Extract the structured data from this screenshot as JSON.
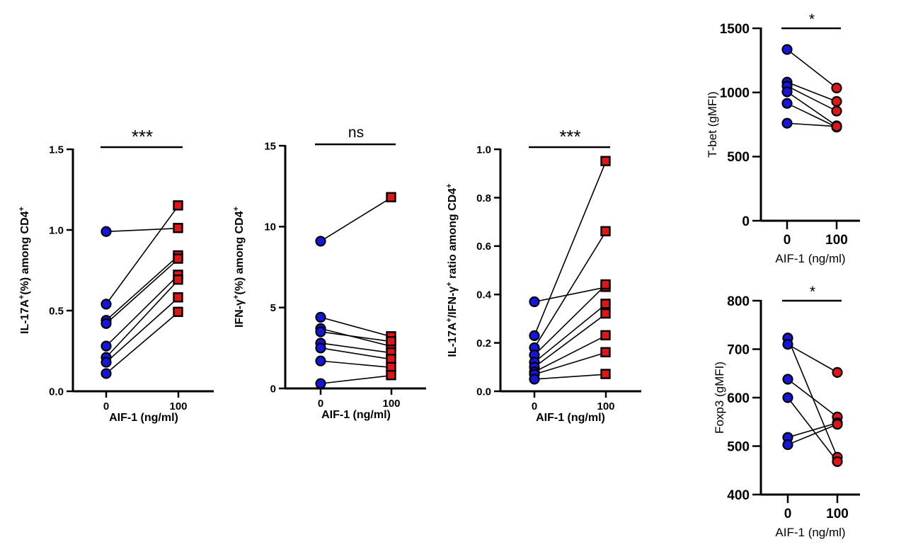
{
  "colors": {
    "ctrl": "#1515e0",
    "treated": "#e01515",
    "axis": "#000000"
  },
  "chart_data": [
    {
      "type": "scatter",
      "title": "",
      "xlabel": "AIF-1 (ng/ml)",
      "ylabel_parts": [
        "IL-17A",
        "+",
        "(%) among CD4",
        "+"
      ],
      "categories": [
        "0",
        "100"
      ],
      "ylim": [
        0,
        1.5
      ],
      "yticks": [
        0,
        0.5,
        1.0,
        1.5
      ],
      "ytick_labels": [
        "0.0",
        "0.5",
        "1.0",
        "1.5"
      ],
      "significance": "***",
      "marker_treated": "square",
      "series": [
        {
          "name": "pair-1",
          "values": [
            0.99,
            1.01
          ]
        },
        {
          "name": "pair-2",
          "values": [
            0.54,
            1.15
          ]
        },
        {
          "name": "pair-3",
          "values": [
            0.44,
            0.84
          ]
        },
        {
          "name": "pair-4",
          "values": [
            0.42,
            0.82
          ]
        },
        {
          "name": "pair-5",
          "values": [
            0.28,
            0.72
          ]
        },
        {
          "name": "pair-6",
          "values": [
            0.21,
            0.69
          ]
        },
        {
          "name": "pair-7",
          "values": [
            0.18,
            0.58
          ]
        },
        {
          "name": "pair-8",
          "values": [
            0.11,
            0.49
          ]
        }
      ]
    },
    {
      "type": "scatter",
      "title": "",
      "xlabel": "AIF-1 (ng/ml)",
      "ylabel_parts": [
        "IFN-γ",
        "+",
        "(%) among CD4",
        "+"
      ],
      "categories": [
        "0",
        "100"
      ],
      "ylim": [
        0,
        15
      ],
      "yticks": [
        0,
        5,
        10,
        15
      ],
      "ytick_labels": [
        "0",
        "5",
        "10",
        "15"
      ],
      "significance": "ns",
      "marker_treated": "square",
      "series": [
        {
          "name": "pair-1",
          "values": [
            9.1,
            11.8
          ]
        },
        {
          "name": "pair-2",
          "values": [
            4.4,
            3.2
          ]
        },
        {
          "name": "pair-3",
          "values": [
            3.7,
            2.6
          ]
        },
        {
          "name": "pair-4",
          "values": [
            3.5,
            2.9
          ]
        },
        {
          "name": "pair-5",
          "values": [
            2.8,
            2.2
          ]
        },
        {
          "name": "pair-6",
          "values": [
            2.5,
            1.8
          ]
        },
        {
          "name": "pair-7",
          "values": [
            1.7,
            1.3
          ]
        },
        {
          "name": "pair-8",
          "values": [
            0.3,
            0.8
          ]
        }
      ]
    },
    {
      "type": "scatter",
      "title": "",
      "xlabel": "AIF-1 (ng/ml)",
      "ylabel_parts": [
        "IL-17A",
        "+",
        "/IFN-γ",
        "+",
        " ratio among CD4",
        "+"
      ],
      "categories": [
        "0",
        "100"
      ],
      "ylim": [
        0,
        1.0
      ],
      "yticks": [
        0,
        0.2,
        0.4,
        0.6,
        0.8,
        1.0
      ],
      "ytick_labels": [
        "0.0",
        "0.2",
        "0.4",
        "0.6",
        "0.8",
        "1.0"
      ],
      "significance": "***",
      "marker_treated": "square",
      "series": [
        {
          "name": "pair-1",
          "values": [
            0.37,
            0.43
          ]
        },
        {
          "name": "pair-2",
          "values": [
            0.23,
            0.95
          ]
        },
        {
          "name": "pair-3",
          "values": [
            0.18,
            0.66
          ]
        },
        {
          "name": "pair-4",
          "values": [
            0.15,
            0.44
          ]
        },
        {
          "name": "pair-5",
          "values": [
            0.12,
            0.36
          ]
        },
        {
          "name": "pair-6",
          "values": [
            0.1,
            0.32
          ]
        },
        {
          "name": "pair-7",
          "values": [
            0.08,
            0.23
          ]
        },
        {
          "name": "pair-8",
          "values": [
            0.07,
            0.16
          ]
        },
        {
          "name": "pair-9",
          "values": [
            0.05,
            0.07
          ]
        }
      ]
    },
    {
      "type": "scatter",
      "title": "",
      "xlabel": "AIF-1 (ng/ml)",
      "ylabel_parts": [
        "T-bet (gMFI)"
      ],
      "categories": [
        "0",
        "100"
      ],
      "ylim": [
        0,
        1500
      ],
      "yticks": [
        0,
        500,
        1000,
        1500
      ],
      "ytick_labels": [
        "0",
        "500",
        "1000",
        "1500"
      ],
      "significance": "*",
      "marker_treated": "circle",
      "series": [
        {
          "name": "pair-1",
          "values": [
            1335,
            1035
          ]
        },
        {
          "name": "pair-2",
          "values": [
            1080,
            930
          ]
        },
        {
          "name": "pair-3",
          "values": [
            1050,
            855
          ]
        },
        {
          "name": "pair-4",
          "values": [
            1005,
            740
          ]
        },
        {
          "name": "pair-5",
          "values": [
            915,
            730
          ]
        },
        {
          "name": "pair-6",
          "values": [
            760,
            735
          ]
        }
      ]
    },
    {
      "type": "scatter",
      "title": "",
      "xlabel": "AIF-1 (ng/ml)",
      "ylabel_parts": [
        "Foxp3 (gMFI)"
      ],
      "categories": [
        "0",
        "100"
      ],
      "ylim": [
        400,
        800
      ],
      "yticks": [
        400,
        500,
        600,
        700,
        800
      ],
      "ytick_labels": [
        "400",
        "500",
        "600",
        "700",
        "800"
      ],
      "significance": "*",
      "marker_treated": "circle",
      "series": [
        {
          "name": "pair-1",
          "values": [
            723,
            477
          ]
        },
        {
          "name": "pair-2",
          "values": [
            710,
            652
          ]
        },
        {
          "name": "pair-3",
          "values": [
            638,
            560
          ]
        },
        {
          "name": "pair-4",
          "values": [
            600,
            468
          ]
        },
        {
          "name": "pair-5",
          "values": [
            518,
            548
          ]
        },
        {
          "name": "pair-6",
          "values": [
            503,
            545
          ]
        }
      ]
    }
  ]
}
